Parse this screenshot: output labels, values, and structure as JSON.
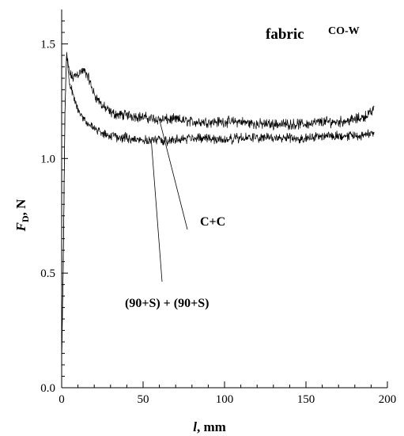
{
  "chart_data": {
    "type": "line",
    "title": "fabric",
    "subtitle": "CO-W",
    "xlabel": "l, mm",
    "ylabel": "F_D, N",
    "xlabel_parts": {
      "var": "l",
      "unit": ", mm"
    },
    "ylabel_parts": {
      "var": "F",
      "sub": "D",
      "unit": ", N"
    },
    "xlim": [
      0,
      200
    ],
    "ylim": [
      0,
      1.65
    ],
    "x_ticks": [
      0,
      50,
      100,
      150,
      200
    ],
    "x_tick_labels": [
      "0",
      "50",
      "100",
      "150",
      "200"
    ],
    "y_ticks": [
      0,
      0.5,
      1.0,
      1.5
    ],
    "y_tick_labels": [
      "0.0",
      "0.5",
      "1.0",
      "1.5"
    ],
    "grid": false,
    "series": [
      {
        "name": "C+C",
        "x": [
          0,
          1,
          2,
          3,
          4,
          5,
          6,
          7,
          8,
          10,
          12,
          14,
          16,
          18,
          20,
          25,
          30,
          35,
          40,
          50,
          60,
          70,
          80,
          90,
          100,
          110,
          120,
          130,
          140,
          150,
          160,
          170,
          180,
          185,
          190,
          192
        ],
        "y": [
          0.12,
          0.55,
          1.2,
          1.47,
          1.4,
          1.37,
          1.36,
          1.35,
          1.36,
          1.37,
          1.38,
          1.38,
          1.36,
          1.32,
          1.28,
          1.23,
          1.2,
          1.19,
          1.19,
          1.18,
          1.17,
          1.17,
          1.16,
          1.16,
          1.16,
          1.16,
          1.15,
          1.15,
          1.15,
          1.15,
          1.16,
          1.16,
          1.17,
          1.18,
          1.2,
          1.22
        ],
        "noise": 0.018
      },
      {
        "name": "(90+S) + (90+S)",
        "x": [
          0,
          1,
          2,
          3,
          4,
          5,
          6,
          7,
          8,
          10,
          12,
          14,
          16,
          18,
          20,
          25,
          30,
          35,
          40,
          50,
          60,
          70,
          80,
          90,
          100,
          110,
          120,
          130,
          140,
          150,
          160,
          170,
          180,
          185,
          190,
          192
        ],
        "y": [
          0.12,
          0.55,
          1.2,
          1.45,
          1.38,
          1.33,
          1.3,
          1.28,
          1.25,
          1.22,
          1.19,
          1.17,
          1.15,
          1.14,
          1.13,
          1.11,
          1.1,
          1.09,
          1.09,
          1.08,
          1.08,
          1.08,
          1.09,
          1.09,
          1.08,
          1.09,
          1.09,
          1.09,
          1.09,
          1.09,
          1.1,
          1.1,
          1.1,
          1.1,
          1.11,
          1.11
        ],
        "noise": 0.016
      }
    ],
    "annotations": [
      {
        "text": "C+C",
        "target_series": "C+C",
        "x": 60,
        "y": 1.17
      },
      {
        "text": "(90+S) + (90+S)",
        "target_series": "(90+S) + (90+S)",
        "x": 55,
        "y": 1.08
      }
    ]
  }
}
